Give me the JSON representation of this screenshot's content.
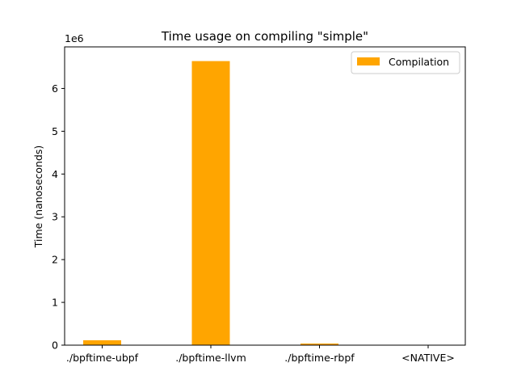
{
  "chart_data": {
    "type": "bar",
    "title": "Time usage on compiling \"simple\"",
    "xlabel": "",
    "ylabel": "Time (nanoseconds)",
    "y_offset_label": "1e6",
    "categories": [
      "./bpftime-ubpf",
      "./bpftime-llvm",
      "./bpftime-rbpf",
      "<NATIVE>"
    ],
    "series": [
      {
        "name": "Compilation",
        "values": [
          115000,
          6640000,
          38000,
          0
        ],
        "color": "#FFA500"
      }
    ],
    "ylim": [
      0,
      6972000
    ],
    "yticks": [
      0,
      1000000,
      2000000,
      3000000,
      4000000,
      5000000,
      6000000
    ],
    "ytick_labels": [
      "0",
      "1",
      "2",
      "3",
      "4",
      "5",
      "6"
    ],
    "grid": false,
    "legend_position": "top-right"
  }
}
